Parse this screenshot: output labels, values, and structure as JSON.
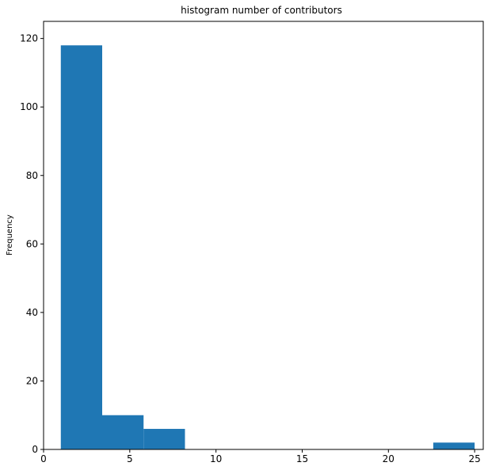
{
  "chart_data": {
    "type": "bar",
    "subtype": "histogram",
    "title": "histogram number of contributors",
    "xlabel": "",
    "ylabel": "Frequency",
    "xlim": [
      0,
      25.5
    ],
    "ylim": [
      0,
      125
    ],
    "xticks": [
      0,
      5,
      10,
      15,
      20,
      25
    ],
    "yticks": [
      0,
      20,
      40,
      60,
      80,
      100,
      120
    ],
    "grid": false,
    "bar_color": "#1f77b4",
    "bins": [
      {
        "x0": 1.0,
        "x1": 3.4,
        "count": 118
      },
      {
        "x0": 3.4,
        "x1": 5.8,
        "count": 10
      },
      {
        "x0": 5.8,
        "x1": 8.2,
        "count": 6
      },
      {
        "x0": 8.2,
        "x1": 10.6,
        "count": 0
      },
      {
        "x0": 10.6,
        "x1": 13.0,
        "count": 0
      },
      {
        "x0": 13.0,
        "x1": 15.4,
        "count": 0
      },
      {
        "x0": 15.4,
        "x1": 17.8,
        "count": 0
      },
      {
        "x0": 17.8,
        "x1": 20.2,
        "count": 0
      },
      {
        "x0": 20.2,
        "x1": 22.6,
        "count": 0
      },
      {
        "x0": 22.6,
        "x1": 25.0,
        "count": 2
      }
    ]
  }
}
